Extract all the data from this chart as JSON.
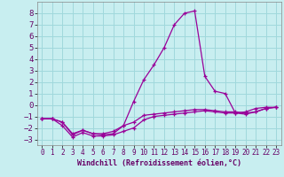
{
  "xlabel": "Windchill (Refroidissement éolien,°C)",
  "bg_color": "#c8eef0",
  "grid_color": "#a0d8dc",
  "line_color": "#990099",
  "xlim": [
    -0.5,
    23.5
  ],
  "ylim": [
    -3.5,
    9.0
  ],
  "xticks": [
    0,
    1,
    2,
    3,
    4,
    5,
    6,
    7,
    8,
    9,
    10,
    11,
    12,
    13,
    14,
    15,
    16,
    17,
    18,
    19,
    20,
    21,
    22,
    23
  ],
  "yticks": [
    -3,
    -2,
    -1,
    0,
    1,
    2,
    3,
    4,
    5,
    6,
    7,
    8
  ],
  "hours": [
    0,
    1,
    2,
    3,
    4,
    5,
    6,
    7,
    8,
    9,
    10,
    11,
    12,
    13,
    14,
    15,
    16,
    17,
    18,
    19,
    20,
    21,
    22,
    23
  ],
  "temp_line": [
    -1.2,
    -1.2,
    -1.5,
    -2.5,
    -2.2,
    -2.5,
    -2.5,
    -2.3,
    -1.8,
    0.3,
    2.2,
    3.5,
    5.0,
    7.0,
    8.0,
    8.2,
    2.5,
    1.2,
    1.0,
    -0.7,
    -0.6,
    -0.3,
    -0.2,
    -0.2
  ],
  "windchill_line1": [
    -1.2,
    -1.2,
    -1.5,
    -2.6,
    -2.2,
    -2.5,
    -2.6,
    -2.5,
    -1.8,
    -1.5,
    -0.9,
    -0.8,
    -0.7,
    -0.6,
    -0.5,
    -0.4,
    -0.4,
    -0.5,
    -0.6,
    -0.6,
    -0.7,
    -0.6,
    -0.3,
    -0.2
  ],
  "windchill_line2": [
    -1.2,
    -1.2,
    -1.8,
    -2.8,
    -2.4,
    -2.7,
    -2.7,
    -2.6,
    -2.3,
    -2.0,
    -1.3,
    -1.0,
    -0.9,
    -0.8,
    -0.7,
    -0.6,
    -0.5,
    -0.6,
    -0.7,
    -0.7,
    -0.8,
    -0.6,
    -0.3,
    -0.2
  ],
  "xlabel_fontsize": 6.0,
  "ytick_fontsize": 6.5,
  "xtick_fontsize": 5.5
}
